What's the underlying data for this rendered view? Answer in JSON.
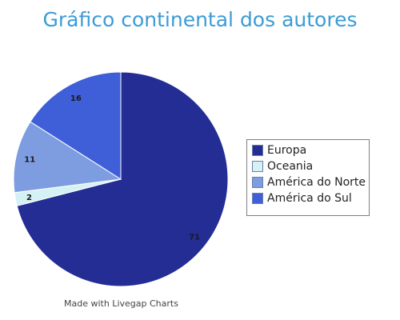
{
  "chart_data": {
    "type": "pie",
    "title": "Gráfico continental dos autores",
    "categories": [
      "Europa",
      "Oceania",
      "América do Norte",
      "América do Sul"
    ],
    "values": [
      71,
      2,
      11,
      16
    ],
    "colors": [
      "#232d94",
      "#d4f1f4",
      "#7d9de0",
      "#3f5fd8"
    ],
    "legend": "right",
    "footer": "Made with Livegap Charts"
  }
}
